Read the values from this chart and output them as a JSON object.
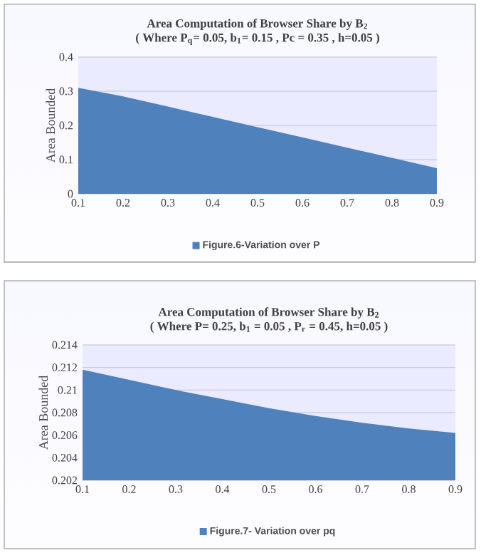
{
  "chart_data": [
    {
      "type": "area",
      "title": "Area Computation of Browser Share by B$_{2}$",
      "subtitle": "( Where P$_{q}$= 0.05,  b$_{1}$= 0.15 , Pc = 0.35 , h=0.05 )",
      "ylabel": "Area Bounded",
      "categories": [
        "0.1",
        "0.2",
        "0.3",
        "0.4",
        "0.5",
        "0.6",
        "0.7",
        "0.8",
        "0.9"
      ],
      "series": [
        {
          "name": "Figure.6-Variation over P",
          "color": "#4f81bd",
          "values": [
            0.31,
            0.285,
            0.255,
            0.225,
            0.195,
            0.165,
            0.135,
            0.105,
            0.075
          ]
        }
      ],
      "ylim": [
        0,
        0.4
      ],
      "yticks": [
        0,
        0.1,
        0.2,
        0.3,
        0.4
      ],
      "grid": "y",
      "legend": "bottom"
    },
    {
      "type": "area",
      "title": "Area Computation of  Browser Share by B$_{2}$",
      "subtitle": "( Where P= 0.25,  b$_{1}$ = 0.05 , P$_{r}$ = 0.45,  h=0.05 )",
      "ylabel": "Area Bounded",
      "categories": [
        "0.1",
        "0.2",
        "0.3",
        "0.4",
        "0.5",
        "0.6",
        "0.7",
        "0.8",
        "0.9"
      ],
      "series": [
        {
          "name": "Figure.7- Variation over pq",
          "color": "#4f81bd",
          "values": [
            0.2118,
            0.2109,
            0.21,
            0.2092,
            0.2084,
            0.2077,
            0.2071,
            0.2066,
            0.2062
          ]
        }
      ],
      "ylim": [
        0.202,
        0.214
      ],
      "yticks": [
        0.202,
        0.204,
        0.206,
        0.208,
        0.21,
        0.212,
        0.214
      ],
      "grid": "y",
      "legend": "bottom"
    }
  ]
}
